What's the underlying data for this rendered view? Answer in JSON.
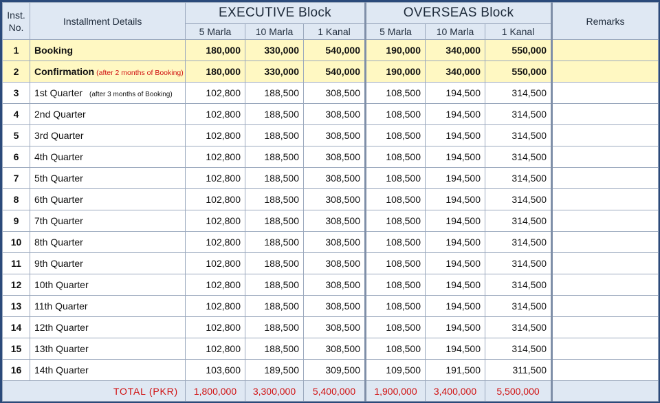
{
  "header": {
    "inst_no": "Inst. No.",
    "details": "Installment Details",
    "executive": "EXECUTIVE Block",
    "overseas": "OVERSEAS Block",
    "remarks": "Remarks",
    "sizes": [
      "5 Marla",
      "10 Marla",
      "1 Kanal"
    ]
  },
  "rows": [
    {
      "no": "1",
      "label": "Booking",
      "note": "",
      "subnote": "",
      "e": [
        "180,000",
        "330,000",
        "540,000"
      ],
      "o": [
        "190,000",
        "340,000",
        "550,000"
      ]
    },
    {
      "no": "2",
      "label": "Confirmation",
      "note": "(after 2 months of Booking)",
      "subnote": "",
      "e": [
        "180,000",
        "330,000",
        "540,000"
      ],
      "o": [
        "190,000",
        "340,000",
        "550,000"
      ]
    },
    {
      "no": "3",
      "label": "1st Quarter",
      "note": "",
      "subnote": "(after 3 months of Booking)",
      "e": [
        "102,800",
        "188,500",
        "308,500"
      ],
      "o": [
        "108,500",
        "194,500",
        "314,500"
      ]
    },
    {
      "no": "4",
      "label": "2nd Quarter",
      "note": "",
      "subnote": "",
      "e": [
        "102,800",
        "188,500",
        "308,500"
      ],
      "o": [
        "108,500",
        "194,500",
        "314,500"
      ]
    },
    {
      "no": "5",
      "label": "3rd Quarter",
      "note": "",
      "subnote": "",
      "e": [
        "102,800",
        "188,500",
        "308,500"
      ],
      "o": [
        "108,500",
        "194,500",
        "314,500"
      ]
    },
    {
      "no": "6",
      "label": "4th Quarter",
      "note": "",
      "subnote": "",
      "e": [
        "102,800",
        "188,500",
        "308,500"
      ],
      "o": [
        "108,500",
        "194,500",
        "314,500"
      ]
    },
    {
      "no": "7",
      "label": "5th Quarter",
      "note": "",
      "subnote": "",
      "e": [
        "102,800",
        "188,500",
        "308,500"
      ],
      "o": [
        "108,500",
        "194,500",
        "314,500"
      ]
    },
    {
      "no": "8",
      "label": "6th Quarter",
      "note": "",
      "subnote": "",
      "e": [
        "102,800",
        "188,500",
        "308,500"
      ],
      "o": [
        "108,500",
        "194,500",
        "314,500"
      ]
    },
    {
      "no": "9",
      "label": "7th Quarter",
      "note": "",
      "subnote": "",
      "e": [
        "102,800",
        "188,500",
        "308,500"
      ],
      "o": [
        "108,500",
        "194,500",
        "314,500"
      ]
    },
    {
      "no": "10",
      "label": "8th Quarter",
      "note": "",
      "subnote": "",
      "e": [
        "102,800",
        "188,500",
        "308,500"
      ],
      "o": [
        "108,500",
        "194,500",
        "314,500"
      ]
    },
    {
      "no": "11",
      "label": "9th Quarter",
      "note": "",
      "subnote": "",
      "e": [
        "102,800",
        "188,500",
        "308,500"
      ],
      "o": [
        "108,500",
        "194,500",
        "314,500"
      ]
    },
    {
      "no": "12",
      "label": "10th Quarter",
      "note": "",
      "subnote": "",
      "e": [
        "102,800",
        "188,500",
        "308,500"
      ],
      "o": [
        "108,500",
        "194,500",
        "314,500"
      ]
    },
    {
      "no": "13",
      "label": "11th Quarter",
      "note": "",
      "subnote": "",
      "e": [
        "102,800",
        "188,500",
        "308,500"
      ],
      "o": [
        "108,500",
        "194,500",
        "314,500"
      ]
    },
    {
      "no": "14",
      "label": "12th Quarter",
      "note": "",
      "subnote": "",
      "e": [
        "102,800",
        "188,500",
        "308,500"
      ],
      "o": [
        "108,500",
        "194,500",
        "314,500"
      ]
    },
    {
      "no": "15",
      "label": "13th Quarter",
      "note": "",
      "subnote": "",
      "e": [
        "102,800",
        "188,500",
        "308,500"
      ],
      "o": [
        "108,500",
        "194,500",
        "314,500"
      ]
    },
    {
      "no": "16",
      "label": "14th Quarter",
      "note": "",
      "subnote": "",
      "e": [
        "103,600",
        "189,500",
        "309,500"
      ],
      "o": [
        "109,500",
        "191,500",
        "311,500"
      ]
    }
  ],
  "total": {
    "label": "TOTAL  (PKR)",
    "e": [
      "1,800,000",
      "3,300,000",
      "5,400,000"
    ],
    "o": [
      "1,900,000",
      "3,400,000",
      "5,500,000"
    ]
  },
  "colors": {
    "highlight_row": "#fff8c2",
    "header_bg": "#dfe8f3",
    "total_text": "#d01010",
    "border": "#2b4a7a"
  }
}
